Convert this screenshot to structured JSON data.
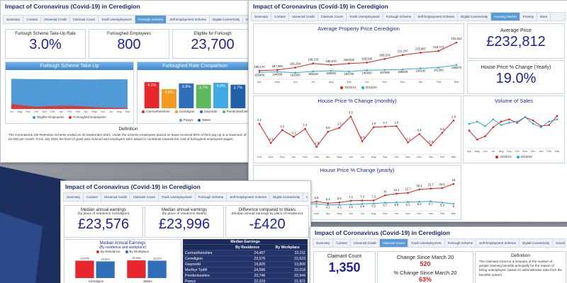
{
  "site_title": "Impact of Coronavirus (Covid-19) in Ceredigion",
  "tabs": [
    "Summary",
    "Context",
    "Universal Credit",
    "Claimant Count",
    "Youth Unemployment",
    "Furlough Scheme",
    "Self Employment Scheme",
    "Digital Connectivity",
    "Housing Market",
    "Poverty",
    "More"
  ],
  "furlough": {
    "active_tab": 5,
    "kpis": [
      {
        "label": "Furlough Scheme Take-Up Rate",
        "value": "3.0%"
      },
      {
        "label": "Furloughed Employees",
        "value": "800"
      },
      {
        "label": "Eligible for Furlough",
        "value": "23,700"
      }
    ],
    "takeup": {
      "title": "Furlough Scheme Take-Up",
      "categories": [
        "Jul",
        "Aug",
        "Sep",
        "Oct",
        "Nov",
        "Dec",
        "Jan",
        "Feb",
        "Mar",
        "Apr",
        "May",
        "Jun",
        "Jul",
        "Aug",
        "Sep"
      ],
      "ylim": [
        0,
        26000
      ],
      "series": [
        {
          "name": "Eligible Employees",
          "color": "#3d8fd4",
          "values": [
            24100,
            24000,
            23900,
            23900,
            23800,
            23800,
            23700,
            23700,
            23700,
            23600,
            23600,
            23700,
            23700,
            23700,
            23700
          ]
        },
        {
          "name": "Furloughed Employees",
          "color": "#e0332b",
          "values": [
            4200,
            3100,
            2400,
            1700,
            2100,
            2300,
            2600,
            2500,
            2300,
            1900,
            1500,
            1200,
            1000,
            900,
            800
          ]
        }
      ]
    },
    "rate": {
      "title": "Furloughed Rate Comparison",
      "categories": [
        "Carmarthenshire",
        "Ceredigion",
        "Gwynedd",
        "Pembrokeshire",
        "Powys",
        "Wales"
      ],
      "values": [
        4.1,
        3.0,
        3.9,
        3.7,
        4.0,
        3.7
      ],
      "value_labels": [
        "4.1%",
        "3.0%",
        "3.9%",
        "3.7%",
        "4.0%",
        "3.7%"
      ],
      "colors": [
        "#e8262b",
        "#f59a1c",
        "#2f6fba",
        "#5cb85c",
        "#3fa9e8",
        "#1e5fa8"
      ],
      "ylim": [
        0,
        5
      ]
    },
    "definition": {
      "title": "Definition",
      "text": "The Coronavirus Job Retention Scheme ended on 30 September 2021. Under the scheme employees placed on leave received 80% of their pay up to a maximum of £2,500 per month. From July 2021 the level of grant was reduced and employers were asked to contribute towards the cost of furloughed employees wages."
    }
  },
  "housing": {
    "active_tab": 8,
    "price": {
      "title": "Average Property Price Ceredigion",
      "categories": [
        "Apr",
        "May",
        "Jun",
        "Jul",
        "Aug",
        "Sep",
        "Oct",
        "Nov",
        "Dec",
        "Jan",
        "Feb",
        "Mar"
      ],
      "ylim": [
        172000,
        240000
      ],
      "series": [
        {
          "name": "2020/21",
          "color": "#e02020",
          "values": [
            186172,
            187520,
            191264,
            198133,
            195670,
            198025,
            199540,
            205676,
            212197,
            215987,
            218771,
            232812
          ],
          "value_labels": [
            "186,172",
            "187,520",
            "191,264",
            "198,133",
            "195,670",
            "198,025",
            "199,540",
            "205,676",
            "212,197",
            "215,987",
            "218,771",
            "232,812"
          ]
        },
        {
          "name": "2019/20",
          "color": "#2aa8d8",
          "values": [
            183400,
            184300,
            182900,
            185100,
            186000,
            184700,
            186900,
            187400,
            188200,
            190100,
            191300,
            195670
          ]
        }
      ]
    },
    "kpis": [
      {
        "label": "Average Price",
        "value": "£232,812"
      },
      {
        "label": "House Price % Change (Yearly)",
        "value": "19.0%"
      }
    ],
    "monthly": {
      "title": "House Price % Change (monthly)",
      "categories": [
        "Oct",
        "Nov",
        "Dec",
        "Jan",
        "Feb",
        "Mar",
        "Apr",
        "May",
        "Jun",
        "Jul",
        "Aug",
        "Sep",
        "Oct",
        "Nov",
        "Dec",
        "Jan",
        "Feb",
        "Mar"
      ],
      "ylim": [
        -3.2,
        4.6
      ],
      "series": [
        {
          "color": "#e02020",
          "values": [
            2.2,
            -1.2,
            1.1,
            -0.1,
            1.3,
            -1.9,
            0.8,
            1.5,
            3.5,
            -0.9,
            1.6,
            1.7,
            1.8,
            -1.1,
            0.4,
            -1.6,
            0.6,
            2.8
          ]
        }
      ]
    },
    "volume": {
      "title": "Volume of Sales",
      "categories": [
        "Apr",
        "May",
        "Jun",
        "Jul",
        "Aug",
        "Sep",
        "Oct",
        "Nov",
        "Dec",
        "Jan",
        "Feb",
        "Mar"
      ],
      "ylim": [
        0,
        170
      ],
      "series": [
        {
          "name": "2020/21",
          "color": "#e02020",
          "values": [
            80,
            40,
            55,
            95,
            120,
            130,
            115,
            140,
            125,
            100,
            105,
            145
          ]
        },
        {
          "name": "2019/20",
          "color": "#2aa8d8",
          "values": [
            110,
            120,
            100,
            130,
            105,
            115,
            120,
            140,
            110,
            95,
            120,
            130
          ]
        }
      ]
    },
    "yearly": {
      "title": "House Price % Change (yearly)",
      "categories": [
        "Oct",
        "Nov",
        "Dec",
        "Jan",
        "Feb",
        "Mar",
        "Apr",
        "May",
        "Jun",
        "Jul",
        "Aug",
        "Sep",
        "Oct",
        "Nov",
        "Dec",
        "Jan",
        "Feb",
        "Mar"
      ],
      "ylim": [
        0,
        22
      ],
      "series": [
        {
          "color": "#e02020",
          "values": [
            6.5,
            5.3,
            6.2,
            4.3,
            5,
            6.6,
            5.4,
            5.9,
            7.1,
            7.3,
            7.3,
            11,
            12.1,
            12.7,
            15.1,
            15.7,
            16.1,
            19
          ]
        },
        {
          "color": "#2aa8d8",
          "values": [
            5.4,
            4,
            4.8,
            4.3,
            4.6,
            5,
            4.2,
            4.3,
            4.5,
            4.9,
            5.2,
            5.7,
            5.9,
            6.2,
            6.4,
            6.7,
            5.8,
            5
          ]
        }
      ]
    }
  },
  "earnings": {
    "active_tab": -1,
    "kpis": [
      {
        "label": "Median annual earnings",
        "sub": "(by place of residence Ceredigion)",
        "value": "£23,576"
      },
      {
        "label": "Median annual earnings",
        "sub": "(by place of residence Wales)",
        "value": "£23,996"
      },
      {
        "label": "Difference compared to Wales",
        "sub": "(Median annual earnings by place of residence)",
        "value": "-£420"
      }
    ],
    "chart": {
      "title": "Median Annual Earnings",
      "subtitle": "(By residence and workplace)",
      "categories": [
        "Ceredigion",
        "Wales"
      ],
      "ylim": [
        0,
        25000
      ],
      "series": [
        {
          "name": "By Residence",
          "color": "#e8262b",
          "values": [
            23576,
            23996
          ],
          "value_labels": [
            "23,576",
            "23,996"
          ]
        },
        {
          "name": "By Workplace",
          "color": "#2f6fba",
          "values": [
            22623,
            23619
          ],
          "value_labels": [
            "22,623",
            "23,619"
          ]
        }
      ]
    },
    "table": {
      "title": "Median Earnings",
      "header": [
        "By Residence",
        "By Workplace"
      ],
      "rows": [
        [
          "Carmarthenshire",
          "24,457",
          "23,011"
        ],
        [
          "Ceredigion",
          "23,576",
          "22,623"
        ],
        [
          "Gwynedd",
          "19,825",
          "19,800"
        ],
        [
          "Merthyr Tydfil",
          "24,596",
          "22,018"
        ],
        [
          "Pembrokeshire",
          "23,746",
          "22,944"
        ],
        [
          "Powys",
          "22,319",
          "21,821"
        ]
      ]
    }
  },
  "claimant": {
    "active_tab": 3,
    "count": {
      "label": "Claimant Count",
      "value": "1,350"
    },
    "change": {
      "label": "Change Since March 20",
      "value": "520"
    },
    "pct": {
      "label": "% Change Since March 20",
      "value": "63%"
    },
    "definition": {
      "title": "Definition",
      "text": "The Claimant Count is a measure of the number of people claiming benefits principally for the reason of being unemployed, based on administrative data from the benefits system."
    }
  }
}
